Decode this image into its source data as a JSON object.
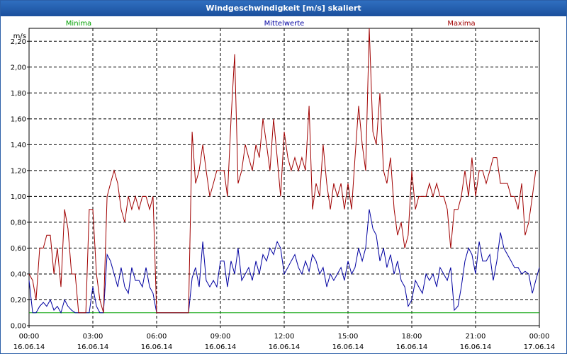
{
  "window": {
    "title": "Windgeschwindigkeit [m/s] skaliert"
  },
  "chart_data": {
    "type": "line",
    "title": "Windgeschwindigkeit [m/s] skaliert",
    "ylabel": "m/s",
    "ylim": [
      0,
      2.3
    ],
    "xlim_hours": [
      0,
      24
    ],
    "yticks": [
      "0,00",
      "0,20",
      "0,40",
      "0,60",
      "0,80",
      "1,00",
      "1,20",
      "1,40",
      "1,60",
      "1,80",
      "2,00",
      "2,20"
    ],
    "xticks": [
      {
        "time": "00:00",
        "date": "16.06.14"
      },
      {
        "time": "03:00",
        "date": "16.06.14"
      },
      {
        "time": "06:00",
        "date": "16.06.14"
      },
      {
        "time": "09:00",
        "date": "16.06.14"
      },
      {
        "time": "12:00",
        "date": "16.06.14"
      },
      {
        "time": "15:00",
        "date": "16.06.14"
      },
      {
        "time": "18:00",
        "date": "16.06.14"
      },
      {
        "time": "21:00",
        "date": "16.06.14"
      },
      {
        "time": "00:00",
        "date": "17.06.14"
      }
    ],
    "grid": true,
    "legend_position": "top",
    "series": [
      {
        "name": "Minima",
        "color": "#00a000",
        "points": [
          [
            0,
            0.1
          ],
          [
            24,
            0.1
          ]
        ]
      },
      {
        "name": "Mittelwerte",
        "color": "#0000a0",
        "points": [
          [
            0.0,
            0.35
          ],
          [
            0.17,
            0.1
          ],
          [
            0.33,
            0.1
          ],
          [
            0.5,
            0.15
          ],
          [
            0.67,
            0.18
          ],
          [
            0.83,
            0.15
          ],
          [
            1.0,
            0.2
          ],
          [
            1.17,
            0.12
          ],
          [
            1.33,
            0.15
          ],
          [
            1.5,
            0.1
          ],
          [
            1.67,
            0.2
          ],
          [
            1.83,
            0.15
          ],
          [
            2.0,
            0.12
          ],
          [
            2.17,
            0.1
          ],
          [
            2.33,
            0.1
          ],
          [
            2.5,
            0.1
          ],
          [
            2.67,
            0.1
          ],
          [
            2.83,
            0.1
          ],
          [
            3.0,
            0.3
          ],
          [
            3.17,
            0.15
          ],
          [
            3.33,
            0.1
          ],
          [
            3.5,
            0.1
          ],
          [
            3.67,
            0.55
          ],
          [
            3.83,
            0.5
          ],
          [
            4.0,
            0.4
          ],
          [
            4.17,
            0.3
          ],
          [
            4.33,
            0.45
          ],
          [
            4.5,
            0.3
          ],
          [
            4.67,
            0.25
          ],
          [
            4.83,
            0.45
          ],
          [
            5.0,
            0.35
          ],
          [
            5.17,
            0.35
          ],
          [
            5.33,
            0.3
          ],
          [
            5.5,
            0.45
          ],
          [
            5.67,
            0.3
          ],
          [
            5.83,
            0.25
          ],
          [
            6.0,
            0.1
          ],
          [
            6.5,
            0.1
          ],
          [
            7.0,
            0.1
          ],
          [
            7.5,
            0.1
          ],
          [
            7.67,
            0.37
          ],
          [
            7.83,
            0.45
          ],
          [
            8.0,
            0.3
          ],
          [
            8.17,
            0.65
          ],
          [
            8.33,
            0.35
          ],
          [
            8.5,
            0.3
          ],
          [
            8.67,
            0.35
          ],
          [
            8.83,
            0.3
          ],
          [
            9.0,
            0.5
          ],
          [
            9.17,
            0.5
          ],
          [
            9.33,
            0.3
          ],
          [
            9.5,
            0.5
          ],
          [
            9.67,
            0.4
          ],
          [
            9.83,
            0.6
          ],
          [
            10.0,
            0.35
          ],
          [
            10.17,
            0.4
          ],
          [
            10.33,
            0.45
          ],
          [
            10.5,
            0.35
          ],
          [
            10.67,
            0.5
          ],
          [
            10.83,
            0.4
          ],
          [
            11.0,
            0.55
          ],
          [
            11.17,
            0.5
          ],
          [
            11.33,
            0.6
          ],
          [
            11.5,
            0.55
          ],
          [
            11.67,
            0.65
          ],
          [
            11.83,
            0.6
          ],
          [
            12.0,
            0.4
          ],
          [
            12.17,
            0.45
          ],
          [
            12.33,
            0.5
          ],
          [
            12.5,
            0.55
          ],
          [
            12.67,
            0.45
          ],
          [
            12.83,
            0.4
          ],
          [
            13.0,
            0.5
          ],
          [
            13.17,
            0.42
          ],
          [
            13.33,
            0.55
          ],
          [
            13.5,
            0.5
          ],
          [
            13.67,
            0.4
          ],
          [
            13.83,
            0.45
          ],
          [
            14.0,
            0.3
          ],
          [
            14.17,
            0.4
          ],
          [
            14.33,
            0.35
          ],
          [
            14.5,
            0.4
          ],
          [
            14.67,
            0.45
          ],
          [
            14.83,
            0.35
          ],
          [
            15.0,
            0.5
          ],
          [
            15.17,
            0.4
          ],
          [
            15.33,
            0.45
          ],
          [
            15.5,
            0.6
          ],
          [
            15.67,
            0.5
          ],
          [
            15.83,
            0.6
          ],
          [
            16.0,
            0.9
          ],
          [
            16.17,
            0.75
          ],
          [
            16.33,
            0.7
          ],
          [
            16.5,
            0.5
          ],
          [
            16.67,
            0.6
          ],
          [
            16.83,
            0.45
          ],
          [
            17.0,
            0.55
          ],
          [
            17.17,
            0.4
          ],
          [
            17.33,
            0.5
          ],
          [
            17.5,
            0.35
          ],
          [
            17.67,
            0.3
          ],
          [
            17.83,
            0.15
          ],
          [
            18.0,
            0.2
          ],
          [
            18.17,
            0.35
          ],
          [
            18.33,
            0.3
          ],
          [
            18.5,
            0.25
          ],
          [
            18.67,
            0.4
          ],
          [
            18.83,
            0.35
          ],
          [
            19.0,
            0.4
          ],
          [
            19.17,
            0.3
          ],
          [
            19.33,
            0.45
          ],
          [
            19.5,
            0.4
          ],
          [
            19.67,
            0.35
          ],
          [
            19.83,
            0.45
          ],
          [
            20.0,
            0.12
          ],
          [
            20.17,
            0.15
          ],
          [
            20.33,
            0.3
          ],
          [
            20.5,
            0.5
          ],
          [
            20.67,
            0.6
          ],
          [
            20.83,
            0.55
          ],
          [
            21.0,
            0.4
          ],
          [
            21.17,
            0.65
          ],
          [
            21.33,
            0.5
          ],
          [
            21.5,
            0.5
          ],
          [
            21.67,
            0.55
          ],
          [
            21.83,
            0.35
          ],
          [
            22.0,
            0.5
          ],
          [
            22.17,
            0.72
          ],
          [
            22.33,
            0.6
          ],
          [
            22.5,
            0.55
          ],
          [
            22.67,
            0.5
          ],
          [
            22.83,
            0.45
          ],
          [
            23.0,
            0.45
          ],
          [
            23.17,
            0.4
          ],
          [
            23.33,
            0.42
          ],
          [
            23.5,
            0.4
          ],
          [
            23.67,
            0.25
          ],
          [
            23.83,
            0.35
          ],
          [
            24.0,
            0.45
          ]
        ]
      },
      {
        "name": "Maxima",
        "color": "#a00000",
        "points": [
          [
            0.0,
            0.4
          ],
          [
            0.17,
            0.35
          ],
          [
            0.33,
            0.2
          ],
          [
            0.5,
            0.6
          ],
          [
            0.67,
            0.6
          ],
          [
            0.83,
            0.7
          ],
          [
            1.0,
            0.7
          ],
          [
            1.17,
            0.4
          ],
          [
            1.33,
            0.6
          ],
          [
            1.5,
            0.3
          ],
          [
            1.67,
            0.9
          ],
          [
            1.83,
            0.75
          ],
          [
            2.0,
            0.4
          ],
          [
            2.17,
            0.4
          ],
          [
            2.33,
            0.1
          ],
          [
            2.5,
            0.1
          ],
          [
            2.67,
            0.1
          ],
          [
            2.83,
            0.9
          ],
          [
            3.0,
            0.9
          ],
          [
            3.17,
            0.4
          ],
          [
            3.33,
            0.2
          ],
          [
            3.5,
            0.1
          ],
          [
            3.67,
            1.0
          ],
          [
            3.83,
            1.1
          ],
          [
            4.0,
            1.2
          ],
          [
            4.17,
            1.1
          ],
          [
            4.33,
            0.9
          ],
          [
            4.5,
            0.8
          ],
          [
            4.67,
            1.0
          ],
          [
            4.83,
            0.9
          ],
          [
            5.0,
            1.0
          ],
          [
            5.17,
            0.9
          ],
          [
            5.33,
            1.0
          ],
          [
            5.5,
            1.0
          ],
          [
            5.67,
            0.9
          ],
          [
            5.83,
            1.0
          ],
          [
            6.0,
            0.1
          ],
          [
            6.5,
            0.1
          ],
          [
            7.0,
            0.1
          ],
          [
            7.5,
            0.1
          ],
          [
            7.67,
            1.5
          ],
          [
            7.83,
            1.1
          ],
          [
            8.0,
            1.2
          ],
          [
            8.17,
            1.4
          ],
          [
            8.33,
            1.2
          ],
          [
            8.5,
            1.0
          ],
          [
            8.67,
            1.1
          ],
          [
            8.83,
            1.2
          ],
          [
            9.0,
            1.2
          ],
          [
            9.17,
            1.2
          ],
          [
            9.33,
            1.0
          ],
          [
            9.5,
            1.6
          ],
          [
            9.67,
            2.1
          ],
          [
            9.83,
            1.1
          ],
          [
            10.0,
            1.2
          ],
          [
            10.17,
            1.4
          ],
          [
            10.33,
            1.3
          ],
          [
            10.5,
            1.2
          ],
          [
            10.67,
            1.4
          ],
          [
            10.83,
            1.3
          ],
          [
            11.0,
            1.6
          ],
          [
            11.17,
            1.4
          ],
          [
            11.33,
            1.2
          ],
          [
            11.5,
            1.6
          ],
          [
            11.67,
            1.3
          ],
          [
            11.83,
            1.0
          ],
          [
            12.0,
            1.5
          ],
          [
            12.17,
            1.3
          ],
          [
            12.33,
            1.2
          ],
          [
            12.5,
            1.3
          ],
          [
            12.67,
            1.2
          ],
          [
            12.83,
            1.3
          ],
          [
            13.0,
            1.2
          ],
          [
            13.17,
            1.7
          ],
          [
            13.33,
            0.9
          ],
          [
            13.5,
            1.1
          ],
          [
            13.67,
            1.0
          ],
          [
            13.83,
            1.4
          ],
          [
            14.0,
            1.1
          ],
          [
            14.17,
            0.9
          ],
          [
            14.33,
            1.1
          ],
          [
            14.5,
            1.0
          ],
          [
            14.67,
            1.1
          ],
          [
            14.83,
            0.9
          ],
          [
            15.0,
            1.1
          ],
          [
            15.17,
            0.9
          ],
          [
            15.33,
            1.3
          ],
          [
            15.5,
            1.7
          ],
          [
            15.67,
            1.4
          ],
          [
            15.83,
            1.2
          ],
          [
            16.0,
            2.3
          ],
          [
            16.17,
            1.5
          ],
          [
            16.33,
            1.4
          ],
          [
            16.5,
            1.8
          ],
          [
            16.67,
            1.2
          ],
          [
            16.83,
            1.1
          ],
          [
            17.0,
            1.3
          ],
          [
            17.17,
            0.9
          ],
          [
            17.33,
            0.7
          ],
          [
            17.5,
            0.8
          ],
          [
            17.67,
            0.6
          ],
          [
            17.83,
            0.7
          ],
          [
            18.0,
            1.2
          ],
          [
            18.17,
            0.9
          ],
          [
            18.33,
            1.0
          ],
          [
            18.5,
            1.0
          ],
          [
            18.67,
            1.0
          ],
          [
            18.83,
            1.1
          ],
          [
            19.0,
            1.0
          ],
          [
            19.17,
            1.1
          ],
          [
            19.33,
            1.0
          ],
          [
            19.5,
            1.0
          ],
          [
            19.67,
            0.9
          ],
          [
            19.83,
            0.6
          ],
          [
            20.0,
            0.9
          ],
          [
            20.17,
            0.9
          ],
          [
            20.33,
            1.0
          ],
          [
            20.5,
            1.2
          ],
          [
            20.67,
            1.0
          ],
          [
            20.83,
            1.3
          ],
          [
            21.0,
            1.0
          ],
          [
            21.17,
            1.2
          ],
          [
            21.33,
            1.2
          ],
          [
            21.5,
            1.1
          ],
          [
            21.67,
            1.2
          ],
          [
            21.83,
            1.3
          ],
          [
            22.0,
            1.3
          ],
          [
            22.17,
            1.1
          ],
          [
            22.33,
            1.1
          ],
          [
            22.5,
            1.1
          ],
          [
            22.67,
            1.0
          ],
          [
            22.83,
            1.0
          ],
          [
            23.0,
            0.9
          ],
          [
            23.17,
            1.1
          ],
          [
            23.33,
            0.7
          ],
          [
            23.5,
            0.8
          ],
          [
            23.67,
            1.0
          ],
          [
            23.83,
            1.2
          ]
        ]
      }
    ]
  }
}
